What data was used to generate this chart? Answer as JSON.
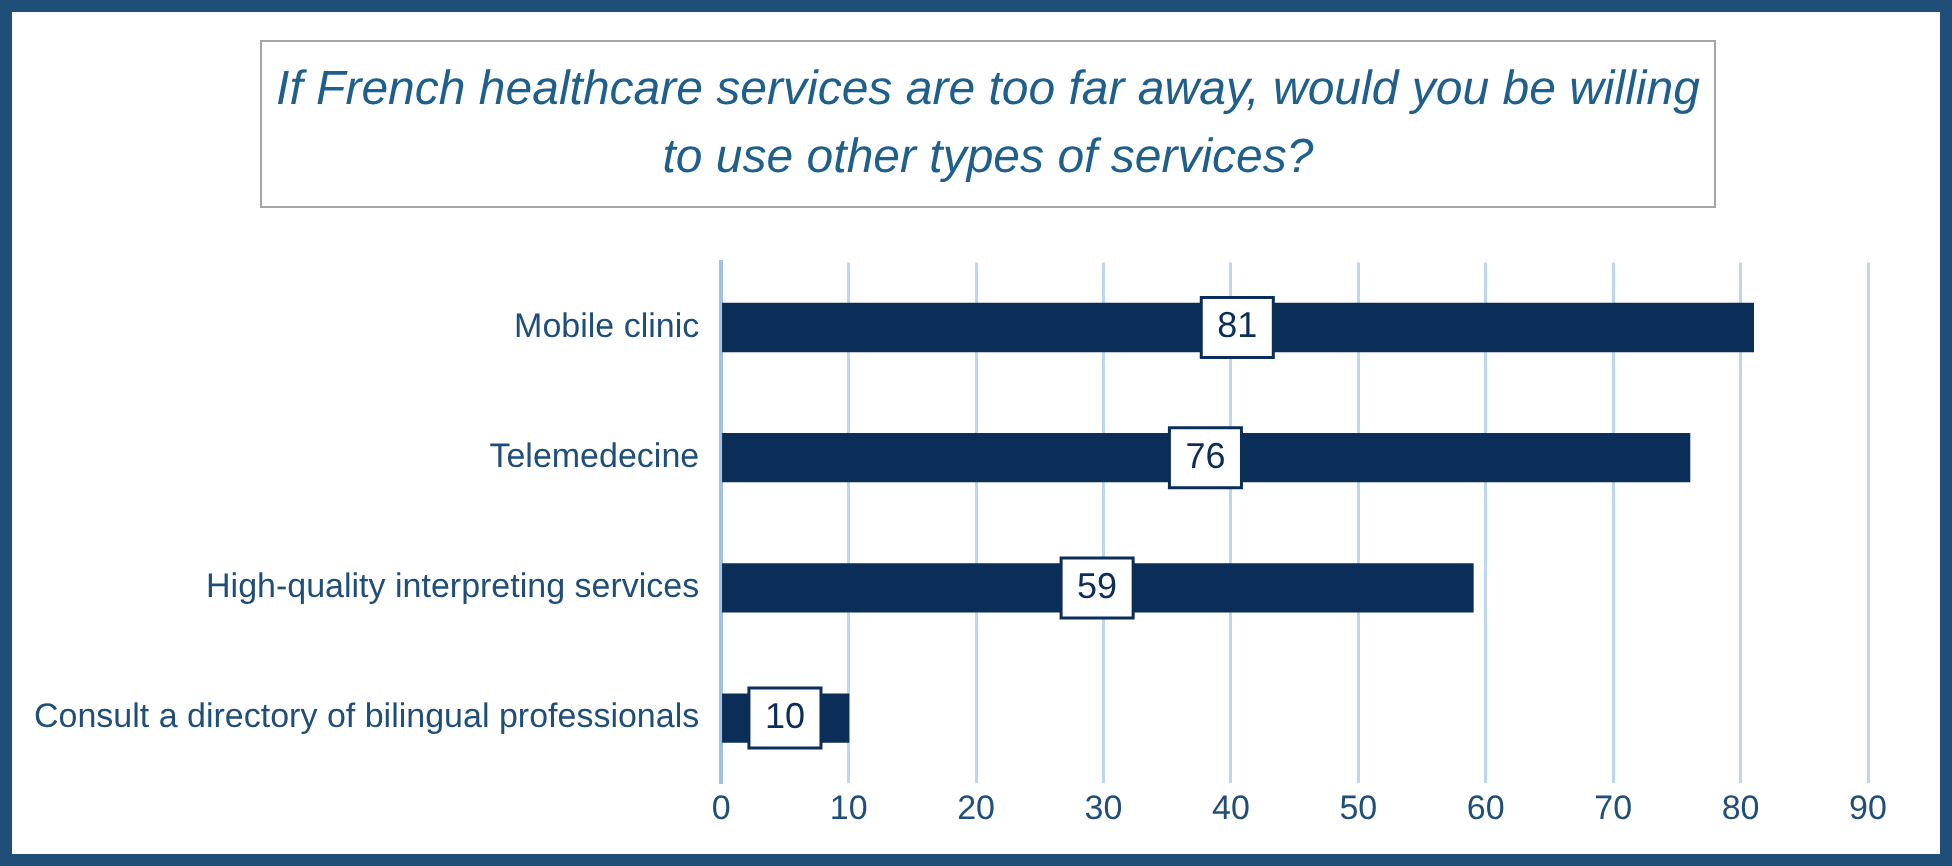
{
  "chart_data": {
    "type": "bar",
    "orientation": "horizontal",
    "title": "If French healthcare services are too far away, would you be willing to use other types of services?",
    "categories": [
      "Mobile clinic",
      "Telemedecine",
      "High-quality interpreting services",
      "Consult a directory of bilingual professionals"
    ],
    "values": [
      81,
      76,
      59,
      10
    ],
    "color": "#0b2e59",
    "xlim": [
      0,
      90
    ],
    "xticks": [
      0,
      10,
      20,
      30,
      40,
      50,
      60,
      70,
      80,
      90
    ],
    "grid": "x",
    "data_labels": true
  }
}
